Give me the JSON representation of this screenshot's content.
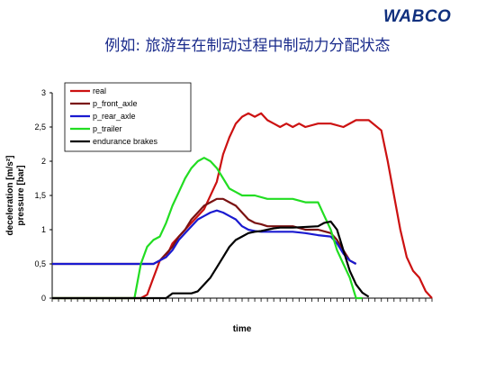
{
  "header": {
    "logo": "WABCO",
    "title": "例如: 旅游车在制动过程中制动力分配状态"
  },
  "chart_data": {
    "type": "line",
    "title": "例如: 旅游车在制动过程中制动力分配状态",
    "xlabel": "time",
    "ylabel": [
      "deceleration [m/s²]",
      "pressure [bar]"
    ],
    "ylim": [
      0,
      3
    ],
    "yticks": [
      "0",
      "0,5",
      "1",
      "1,5",
      "2",
      "2,5",
      "3"
    ],
    "xlim": [
      0,
      60
    ],
    "grid": false,
    "legend_position": "top-left",
    "series": [
      {
        "name": "real",
        "color": "#cc1111",
        "x": [
          0,
          14,
          15,
          16,
          17,
          18,
          19,
          20,
          22,
          24,
          26,
          27,
          28,
          29,
          30,
          31,
          32,
          33,
          34,
          35,
          36,
          37,
          38,
          39,
          40,
          42,
          44,
          46,
          48,
          50,
          52,
          53,
          54,
          55,
          56,
          57,
          58,
          59,
          60
        ],
        "y": [
          0,
          0,
          0.05,
          0.3,
          0.55,
          0.6,
          0.8,
          0.9,
          1.1,
          1.3,
          1.7,
          2.1,
          2.35,
          2.55,
          2.65,
          2.7,
          2.65,
          2.7,
          2.6,
          2.55,
          2.5,
          2.55,
          2.5,
          2.55,
          2.5,
          2.55,
          2.55,
          2.5,
          2.6,
          2.6,
          2.45,
          2.0,
          1.5,
          1.0,
          0.6,
          0.4,
          0.3,
          0.1,
          0
        ]
      },
      {
        "name": "p_front_axle",
        "color": "#7a1212",
        "x": [
          0,
          14,
          16,
          17,
          18,
          19,
          20,
          21,
          22,
          23,
          24,
          25,
          26,
          27,
          28,
          29,
          30,
          31,
          32,
          33,
          34,
          36,
          38,
          40,
          42,
          44,
          45,
          46,
          47,
          48
        ],
        "y": [
          0.5,
          0.5,
          0.5,
          0.55,
          0.65,
          0.75,
          0.9,
          1.0,
          1.15,
          1.25,
          1.35,
          1.4,
          1.45,
          1.45,
          1.4,
          1.35,
          1.25,
          1.15,
          1.1,
          1.08,
          1.05,
          1.05,
          1.05,
          1.0,
          1.0,
          0.95,
          0.85,
          0.7,
          0.55,
          0.5
        ]
      },
      {
        "name": "p_rear_axle",
        "color": "#1a1ad0",
        "x": [
          0,
          14,
          16,
          17,
          18,
          19,
          20,
          21,
          22,
          23,
          24,
          25,
          26,
          27,
          28,
          29,
          30,
          31,
          32,
          33,
          34,
          36,
          38,
          40,
          42,
          44,
          45,
          46,
          47,
          48
        ],
        "y": [
          0.5,
          0.5,
          0.5,
          0.55,
          0.6,
          0.7,
          0.85,
          0.95,
          1.05,
          1.15,
          1.2,
          1.25,
          1.28,
          1.25,
          1.2,
          1.15,
          1.05,
          1.0,
          0.98,
          0.97,
          0.97,
          0.97,
          0.97,
          0.95,
          0.92,
          0.9,
          0.8,
          0.65,
          0.55,
          0.5
        ]
      },
      {
        "name": "p_trailer",
        "color": "#22dd22",
        "x": [
          0,
          13,
          14,
          15,
          16,
          17,
          18,
          19,
          20,
          21,
          22,
          23,
          24,
          25,
          26,
          27,
          28,
          29,
          30,
          32,
          34,
          36,
          38,
          40,
          42,
          43,
          44,
          45,
          46,
          47,
          48,
          49
        ],
        "y": [
          0,
          0,
          0.5,
          0.75,
          0.85,
          0.9,
          1.1,
          1.35,
          1.55,
          1.75,
          1.9,
          2.0,
          2.05,
          2.0,
          1.9,
          1.75,
          1.6,
          1.55,
          1.5,
          1.5,
          1.45,
          1.45,
          1.45,
          1.4,
          1.4,
          1.2,
          1.0,
          0.7,
          0.5,
          0.3,
          0,
          0
        ]
      },
      {
        "name": "endurance brakes",
        "color": "#000000",
        "x": [
          0,
          18,
          19,
          22,
          23,
          25,
          26,
          27,
          28,
          29,
          30,
          31,
          32,
          33,
          34,
          35,
          36,
          38,
          40,
          42,
          43,
          44,
          45,
          46,
          47,
          48,
          49,
          50
        ],
        "y": [
          0,
          0,
          0.07,
          0.07,
          0.1,
          0.3,
          0.45,
          0.6,
          0.75,
          0.85,
          0.9,
          0.95,
          0.97,
          0.98,
          1.0,
          1.02,
          1.03,
          1.03,
          1.04,
          1.05,
          1.1,
          1.12,
          1.0,
          0.7,
          0.4,
          0.2,
          0.08,
          0.02
        ]
      }
    ]
  }
}
